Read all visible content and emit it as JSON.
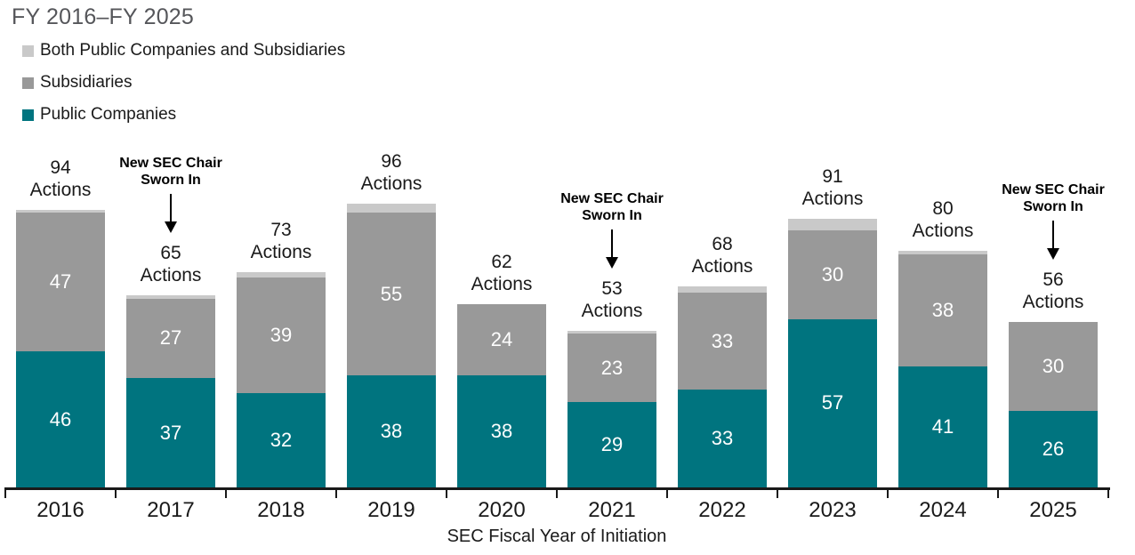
{
  "title": "FY 2016–FY 2025",
  "legend": {
    "items": [
      {
        "label": "Both Public Companies and Subsidiaries",
        "color": "#C9C9C9"
      },
      {
        "label": "Subsidiaries",
        "color": "#999999"
      },
      {
        "label": "Public Companies",
        "color": "#00747F"
      }
    ]
  },
  "chart_data": {
    "type": "bar",
    "stacked": true,
    "title": "FY 2016–FY 2025",
    "xlabel": "SEC Fiscal Year of Initiation",
    "ylabel": "",
    "grid": false,
    "legend_position": "top-left",
    "categories": [
      "2016",
      "2017",
      "2018",
      "2019",
      "2020",
      "2021",
      "2022",
      "2023",
      "2024",
      "2025"
    ],
    "series": [
      {
        "name": "Public Companies",
        "color": "#00747F",
        "labeled": true,
        "values": [
          46,
          37,
          32,
          38,
          38,
          29,
          33,
          57,
          41,
          26
        ]
      },
      {
        "name": "Subsidiaries",
        "color": "#999999",
        "labeled": true,
        "values": [
          47,
          27,
          39,
          55,
          24,
          23,
          33,
          30,
          38,
          30
        ]
      },
      {
        "name": "Both Public Companies and Subsidiaries",
        "color": "#C9C9C9",
        "labeled": false,
        "values": [
          1,
          1,
          2,
          3,
          0,
          1,
          2,
          4,
          1,
          0
        ]
      }
    ],
    "totals": [
      94,
      65,
      73,
      96,
      62,
      53,
      68,
      91,
      80,
      56
    ],
    "total_label_suffix": "Actions",
    "annotations": [
      {
        "category": "2017",
        "lines": [
          "New SEC Chair",
          "Sworn In"
        ]
      },
      {
        "category": "2021",
        "lines": [
          "New SEC Chair",
          "Sworn In"
        ]
      },
      {
        "category": "2025",
        "lines": [
          "New SEC Chair",
          "Sworn In"
        ]
      }
    ]
  }
}
